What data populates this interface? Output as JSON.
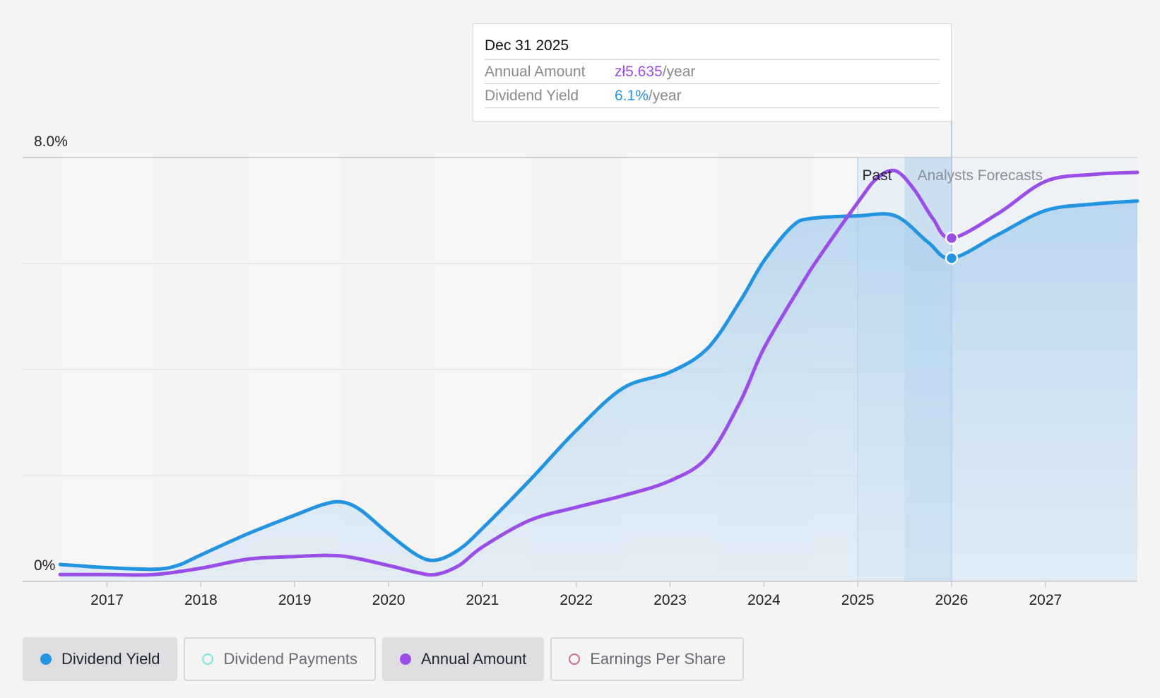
{
  "chart_data": {
    "type": "area",
    "y_axis": {
      "ticks": [
        "8.0%",
        "0%"
      ],
      "ylim": [
        0,
        8.0
      ]
    },
    "x_axis": {
      "ticks": [
        "2017",
        "2018",
        "2019",
        "2020",
        "2021",
        "2022",
        "2023",
        "2024",
        "2025",
        "2026",
        "2027"
      ],
      "range": [
        2016.1,
        2027.98
      ]
    },
    "sections": {
      "past_label": "Past",
      "forecast_label": "Analysts Forecasts",
      "past_start": 2025.0,
      "divider": 2025.5,
      "current": 2026.0
    },
    "series": [
      {
        "name": "Dividend Yield",
        "color": "#2394df",
        "fill": true,
        "points": [
          [
            2016.5,
            0.32
          ],
          [
            2017.0,
            0.26
          ],
          [
            2017.5,
            0.23
          ],
          [
            2017.75,
            0.3
          ],
          [
            2018.0,
            0.5
          ],
          [
            2018.5,
            0.9
          ],
          [
            2019.0,
            1.25
          ],
          [
            2019.3,
            1.45
          ],
          [
            2019.5,
            1.5
          ],
          [
            2019.7,
            1.35
          ],
          [
            2020.0,
            0.9
          ],
          [
            2020.3,
            0.5
          ],
          [
            2020.5,
            0.4
          ],
          [
            2020.75,
            0.6
          ],
          [
            2021.0,
            1.0
          ],
          [
            2021.5,
            1.9
          ],
          [
            2022.0,
            2.85
          ],
          [
            2022.5,
            3.65
          ],
          [
            2023.0,
            3.95
          ],
          [
            2023.4,
            4.4
          ],
          [
            2023.75,
            5.3
          ],
          [
            2024.0,
            6.05
          ],
          [
            2024.3,
            6.7
          ],
          [
            2024.5,
            6.85
          ],
          [
            2025.0,
            6.9
          ],
          [
            2025.4,
            6.9
          ],
          [
            2025.75,
            6.4
          ],
          [
            2026.0,
            6.1
          ],
          [
            2026.5,
            6.55
          ],
          [
            2027.0,
            7.0
          ],
          [
            2027.5,
            7.12
          ],
          [
            2027.98,
            7.18
          ]
        ]
      },
      {
        "name": "Annual Amount",
        "color": "#9b4de8",
        "fill": false,
        "points": [
          [
            2016.5,
            0.13
          ],
          [
            2017.0,
            0.13
          ],
          [
            2017.5,
            0.13
          ],
          [
            2018.0,
            0.25
          ],
          [
            2018.5,
            0.42
          ],
          [
            2019.0,
            0.47
          ],
          [
            2019.5,
            0.48
          ],
          [
            2020.0,
            0.3
          ],
          [
            2020.3,
            0.17
          ],
          [
            2020.5,
            0.13
          ],
          [
            2020.75,
            0.3
          ],
          [
            2021.0,
            0.65
          ],
          [
            2021.5,
            1.15
          ],
          [
            2022.0,
            1.4
          ],
          [
            2022.5,
            1.62
          ],
          [
            2023.0,
            1.9
          ],
          [
            2023.4,
            2.35
          ],
          [
            2023.75,
            3.4
          ],
          [
            2024.0,
            4.4
          ],
          [
            2024.4,
            5.6
          ],
          [
            2024.6,
            6.15
          ],
          [
            2025.0,
            7.15
          ],
          [
            2025.2,
            7.6
          ],
          [
            2025.4,
            7.75
          ],
          [
            2025.6,
            7.4
          ],
          [
            2025.8,
            6.85
          ],
          [
            2026.0,
            6.48
          ],
          [
            2026.5,
            6.95
          ],
          [
            2027.0,
            7.55
          ],
          [
            2027.5,
            7.68
          ],
          [
            2027.98,
            7.72
          ]
        ]
      }
    ],
    "highlight_points": [
      {
        "series": "Annual Amount",
        "x": 2026.0,
        "y": 6.48
      },
      {
        "series": "Dividend Yield",
        "x": 2026.0,
        "y": 6.1
      }
    ]
  },
  "tooltip": {
    "date": "Dec 31 2025",
    "rows": [
      {
        "label": "Annual Amount",
        "value": "zł5.635",
        "unit": "/year",
        "color": "#9b4de8"
      },
      {
        "label": "Dividend Yield",
        "value": "6.1%",
        "unit": "/year",
        "color": "#2394df"
      }
    ]
  },
  "legend": [
    {
      "label": "Dividend Yield",
      "color": "#2394df",
      "active": true,
      "filled": true
    },
    {
      "label": "Dividend Payments",
      "color": "#7ee3dc",
      "active": false,
      "filled": false
    },
    {
      "label": "Annual Amount",
      "color": "#9b4de8",
      "active": true,
      "filled": true
    },
    {
      "label": "Earnings Per Share",
      "color": "#d0679b",
      "active": false,
      "filled": false
    }
  ]
}
